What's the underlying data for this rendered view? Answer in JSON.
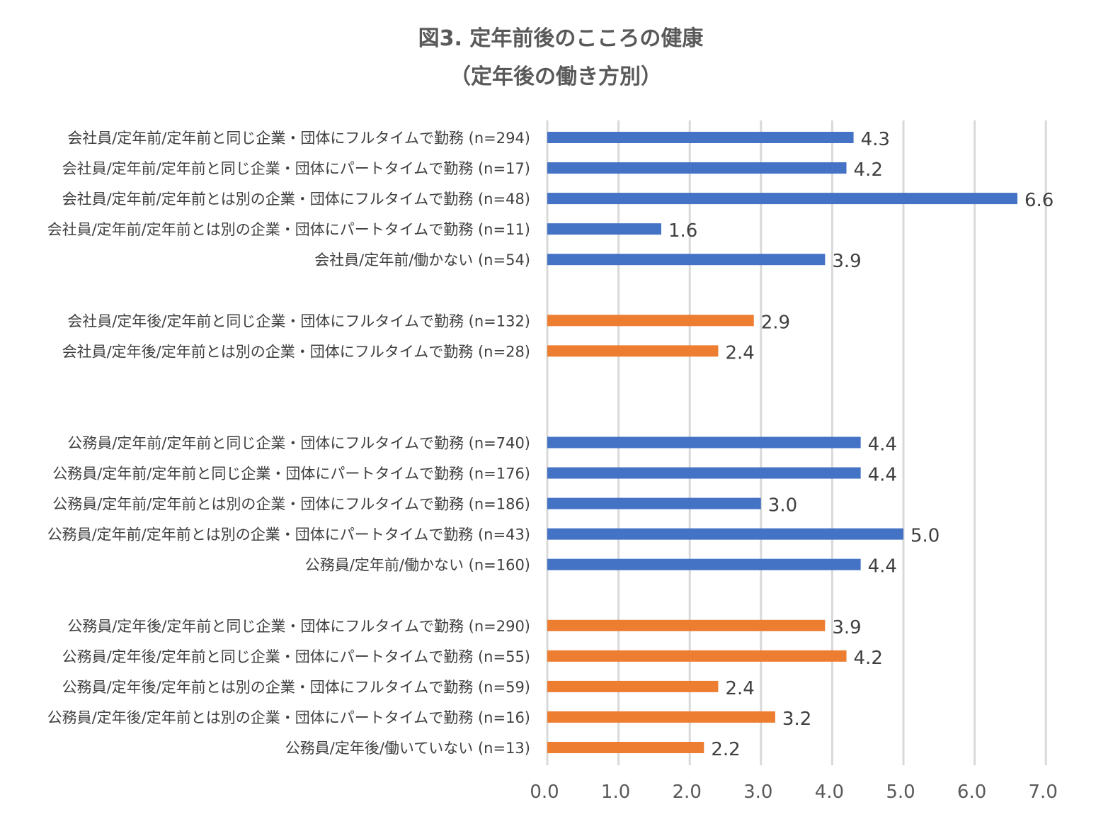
{
  "chart_data": {
    "type": "bar",
    "orientation": "horizontal",
    "title": "図3. 定年前後のこころの健康",
    "subtitle": "（定年後の働き方別）",
    "xlim": [
      0,
      7
    ],
    "xticks": [
      "0.0",
      "1.0",
      "2.0",
      "3.0",
      "4.0",
      "5.0",
      "6.0",
      "7.0"
    ],
    "grid": true,
    "colors": {
      "before": "#4472C4",
      "after": "#ED7D31"
    },
    "bars": [
      {
        "label": "会社員/定年前/定年前と同じ企業・団体にフルタイムで勤務 (n=294)",
        "value": 4.3,
        "value_label": "4.3",
        "group": "before",
        "slot": 0
      },
      {
        "label": "会社員/定年前/定年前と同じ企業・団体にパートタイムで勤務 (n=17)",
        "value": 4.2,
        "value_label": "4.2",
        "group": "before",
        "slot": 1
      },
      {
        "label": "会社員/定年前/定年前とは別の企業・団体にフルタイムで勤務 (n=48)",
        "value": 6.6,
        "value_label": "6.6",
        "group": "before",
        "slot": 2
      },
      {
        "label": "会社員/定年前/定年前とは別の企業・団体にパートタイムで勤務 (n=11)",
        "value": 1.6,
        "value_label": "1.6",
        "group": "before",
        "slot": 3
      },
      {
        "label": "会社員/定年前/働かない (n=54)",
        "value": 3.9,
        "value_label": "3.9",
        "group": "before",
        "slot": 4
      },
      {
        "label": "会社員/定年後/定年前と同じ企業・団体にフルタイムで勤務 (n=132)",
        "value": 2.9,
        "value_label": "2.9",
        "group": "after",
        "slot": 6
      },
      {
        "label": "会社員/定年後/定年前とは別の企業・団体にフルタイムで勤務 (n=28)",
        "value": 2.4,
        "value_label": "2.4",
        "group": "after",
        "slot": 7
      },
      {
        "label": "公務員/定年前/定年前と同じ企業・団体にフルタイムで勤務 (n=740)",
        "value": 4.4,
        "value_label": "4.4",
        "group": "before",
        "slot": 10
      },
      {
        "label": "公務員/定年前/定年前と同じ企業・団体にパートタイムで勤務 (n=176)",
        "value": 4.4,
        "value_label": "4.4",
        "group": "before",
        "slot": 11
      },
      {
        "label": "公務員/定年前/定年前とは別の企業・団体にフルタイムで勤務 (n=186)",
        "value": 3.0,
        "value_label": "3.0",
        "group": "before",
        "slot": 12
      },
      {
        "label": "公務員/定年前/定年前とは別の企業・団体にパートタイムで勤務 (n=43)",
        "value": 5.0,
        "value_label": "5.0",
        "group": "before",
        "slot": 13
      },
      {
        "label": "公務員/定年前/働かない (n=160)",
        "value": 4.4,
        "value_label": "4.4",
        "group": "before",
        "slot": 14
      },
      {
        "label": "公務員/定年後/定年前と同じ企業・団体にフルタイムで勤務 (n=290)",
        "value": 3.9,
        "value_label": "3.9",
        "group": "after",
        "slot": 16
      },
      {
        "label": "公務員/定年後/定年前と同じ企業・団体にパートタイムで勤務 (n=55)",
        "value": 4.2,
        "value_label": "4.2",
        "group": "after",
        "slot": 17
      },
      {
        "label": "公務員/定年後/定年前とは別の企業・団体にフルタイムで勤務 (n=59)",
        "value": 2.4,
        "value_label": "2.4",
        "group": "after",
        "slot": 18
      },
      {
        "label": "公務員/定年後/定年前とは別の企業・団体にパートタイムで勤務 (n=16)",
        "value": 3.2,
        "value_label": "3.2",
        "group": "after",
        "slot": 19
      },
      {
        "label": "公務員/定年後/働いていない (n=13)",
        "value": 2.2,
        "value_label": "2.2",
        "group": "after",
        "slot": 20
      }
    ]
  }
}
